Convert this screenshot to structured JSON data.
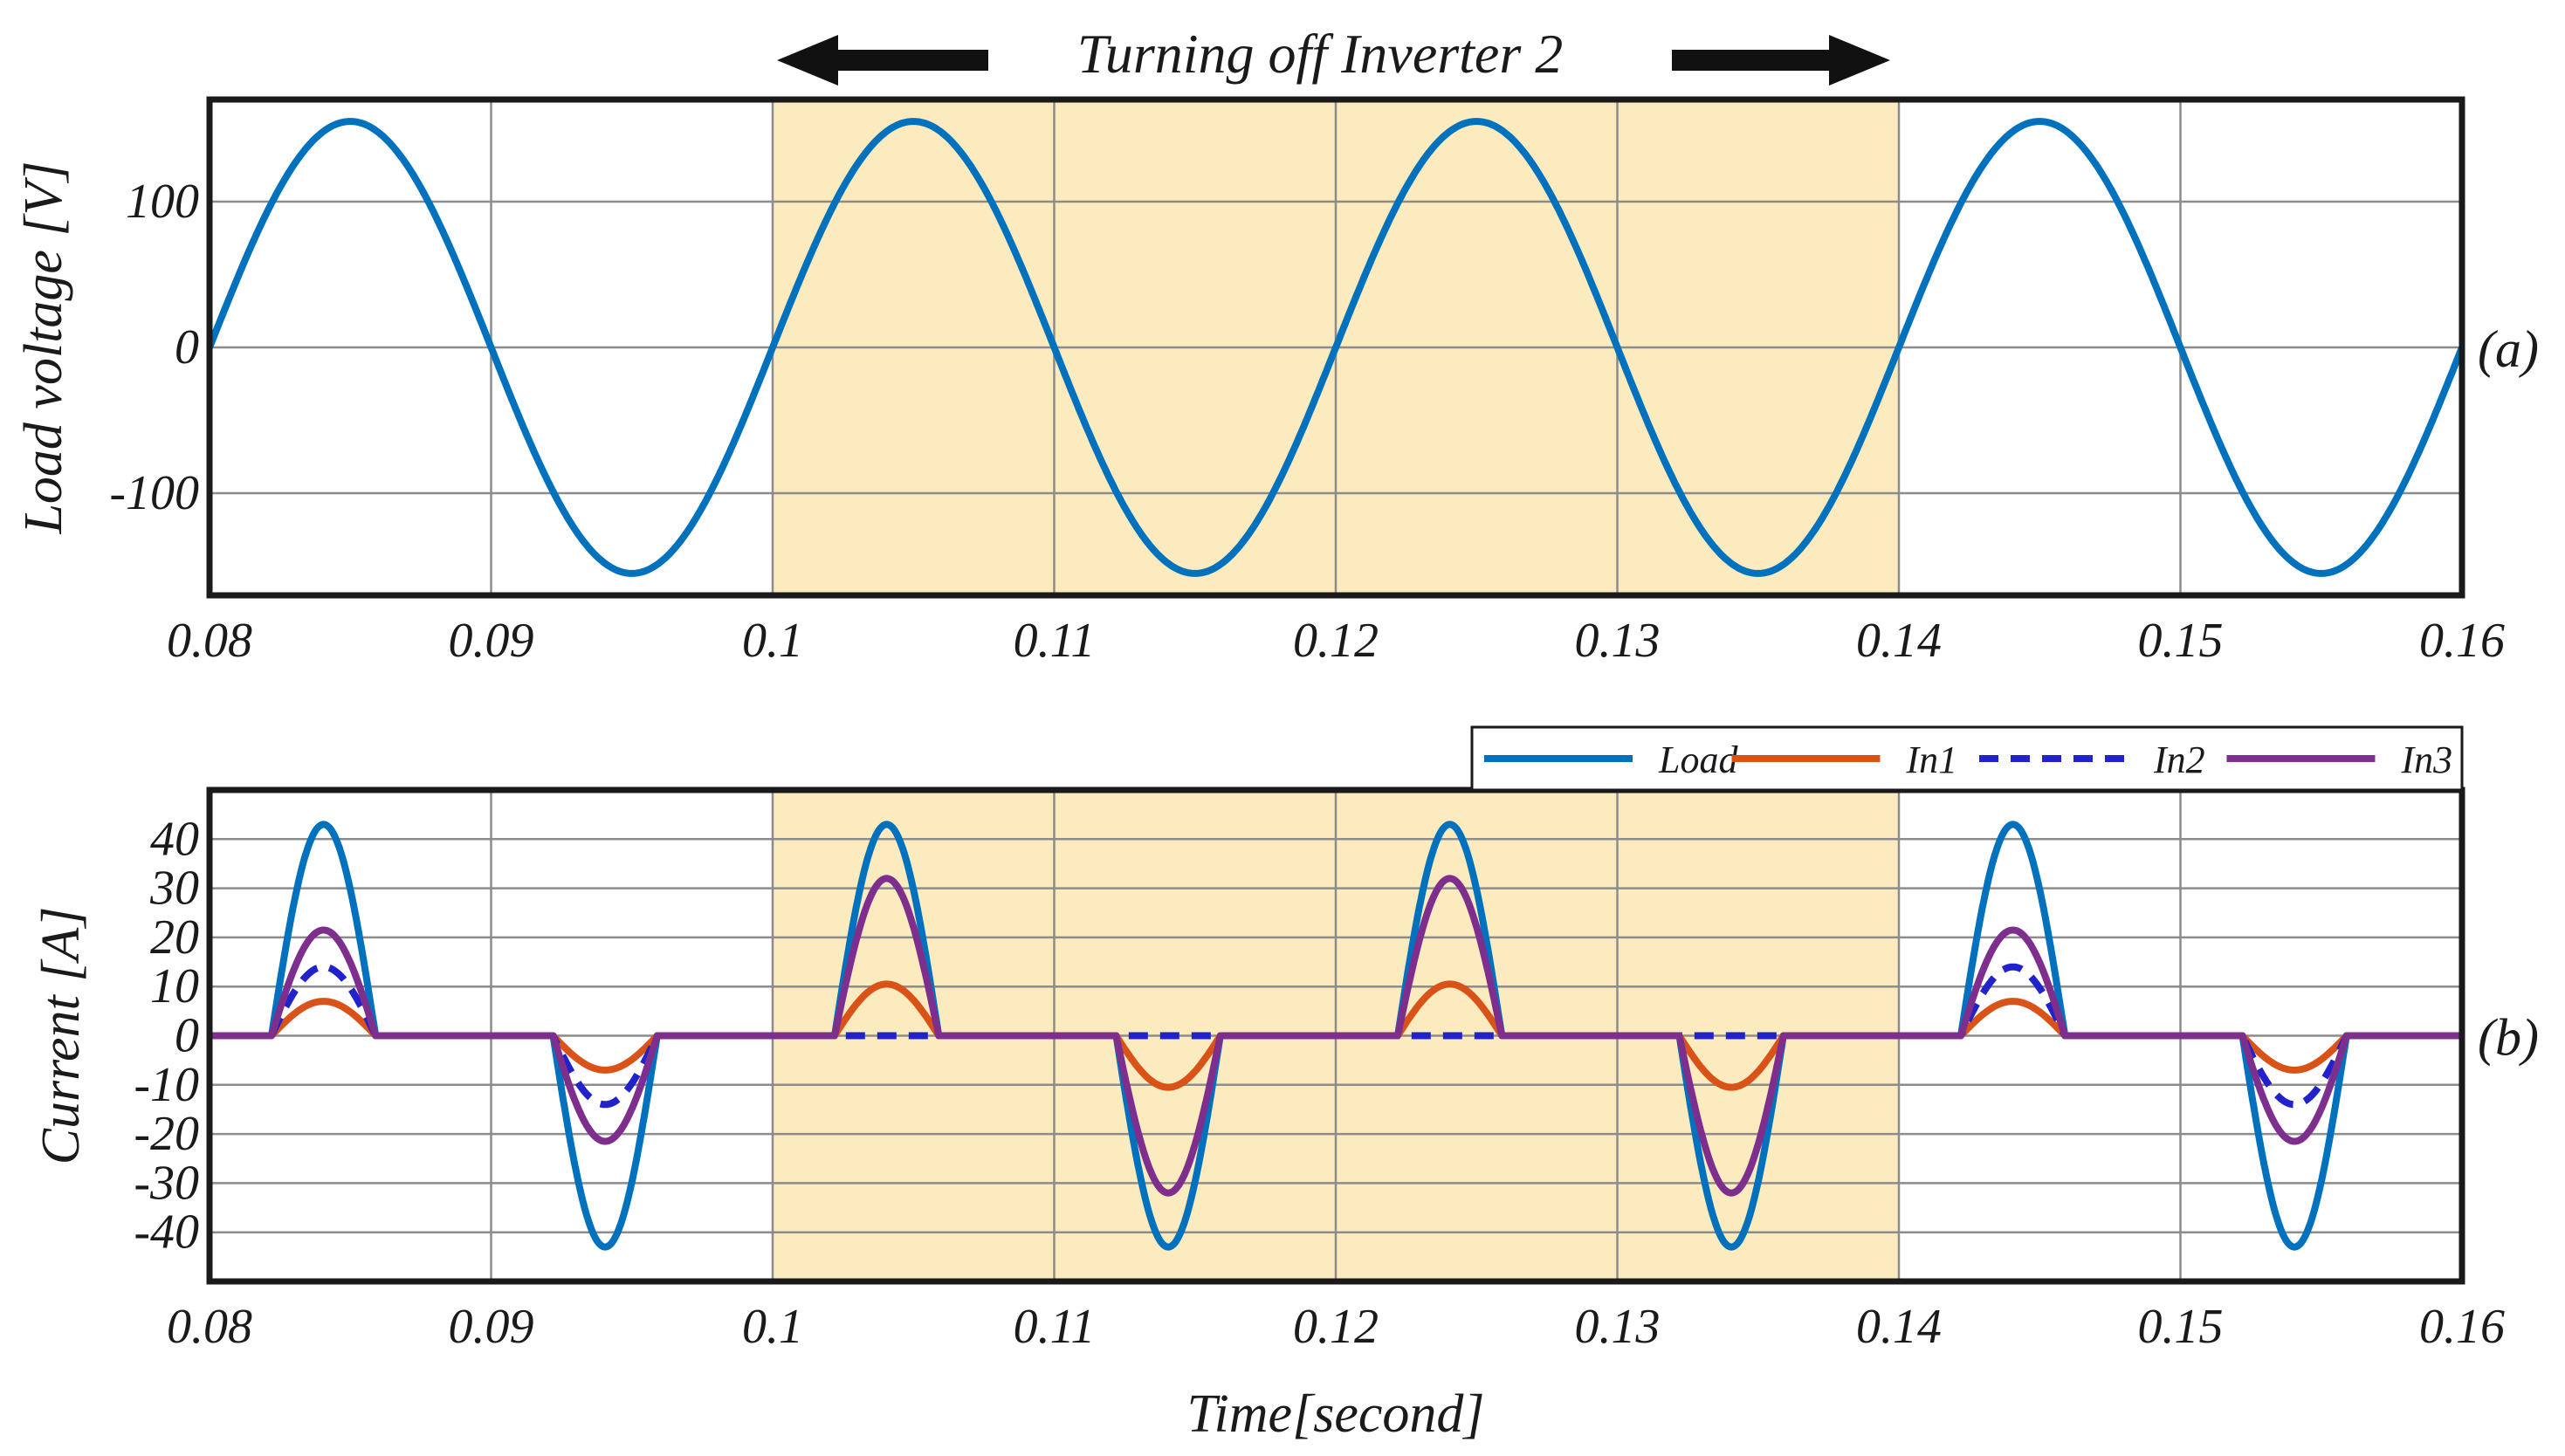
{
  "chart_data": [
    {
      "id": "a",
      "type": "line",
      "panel_label": "(a)",
      "annotation": "Turning off Inverter 2",
      "ylabel": "Load voltage [V]",
      "xlabel": "",
      "xlim": [
        0.08,
        0.16
      ],
      "ylim": [
        -170,
        170
      ],
      "xticks": [
        0.08,
        0.09,
        0.1,
        0.11,
        0.12,
        0.13,
        0.14,
        0.15,
        0.16
      ],
      "xtick_labels": [
        "0.08",
        "0.09",
        "0.1",
        "0.11",
        "0.12",
        "0.13",
        "0.14",
        "0.15",
        "0.16"
      ],
      "yticks": [
        -100,
        0,
        100
      ],
      "ytick_labels": [
        "-100",
        "0",
        "100"
      ],
      "shaded_region": [
        0.1,
        0.14
      ],
      "grid": true,
      "series": [
        {
          "name": "Load voltage",
          "color": "#0072BD",
          "style": "solid",
          "function": "sine",
          "amplitude": 155,
          "frequency_hz": 50,
          "x_range": [
            0.08,
            0.16
          ]
        }
      ]
    },
    {
      "id": "b",
      "type": "line",
      "panel_label": "(b)",
      "ylabel": "Current [A]",
      "xlabel": "Time[second]",
      "xlim": [
        0.08,
        0.16
      ],
      "ylim": [
        -50,
        50
      ],
      "xticks": [
        0.08,
        0.09,
        0.1,
        0.11,
        0.12,
        0.13,
        0.14,
        0.15,
        0.16
      ],
      "xtick_labels": [
        "0.08",
        "0.09",
        "0.1",
        "0.11",
        "0.12",
        "0.13",
        "0.14",
        "0.15",
        "0.16"
      ],
      "yticks": [
        -40,
        -30,
        -20,
        -10,
        0,
        10,
        20,
        30,
        40
      ],
      "ytick_labels": [
        "-40",
        "-30",
        "-20",
        "-10",
        "0",
        "10",
        "20",
        "30",
        "40"
      ],
      "shaded_region": [
        0.1,
        0.14
      ],
      "grid": true,
      "legend_position": "top-right, outside",
      "pulse_model": {
        "type": "rectified sine pulses each half cycle",
        "pulse_start_offsets": [
          0.0022,
          0.0122
        ],
        "pulse_duration": 0.0037,
        "period": 0.02,
        "first_cycle_start": 0.08
      },
      "series": [
        {
          "name": "Load",
          "color": "#0072BD",
          "style": "solid",
          "peaks": {
            "normal": 43,
            "inverter2_off": 43
          }
        },
        {
          "name": "In1",
          "color": "#D95319",
          "style": "solid",
          "peaks": {
            "normal": 7,
            "inverter2_off": 10.5
          }
        },
        {
          "name": "In2",
          "color": "#2222CC",
          "style": "dashed",
          "peaks": {
            "normal": 14,
            "inverter2_off": 0
          }
        },
        {
          "name": "In3",
          "color": "#7E2F8E",
          "style": "solid",
          "peaks": {
            "normal": 21.5,
            "inverter2_off": 32
          }
        }
      ]
    }
  ],
  "colors": {
    "shade": "#FCEBBE",
    "frame": "#1a1a1a",
    "grid": "#8c8c8c"
  }
}
